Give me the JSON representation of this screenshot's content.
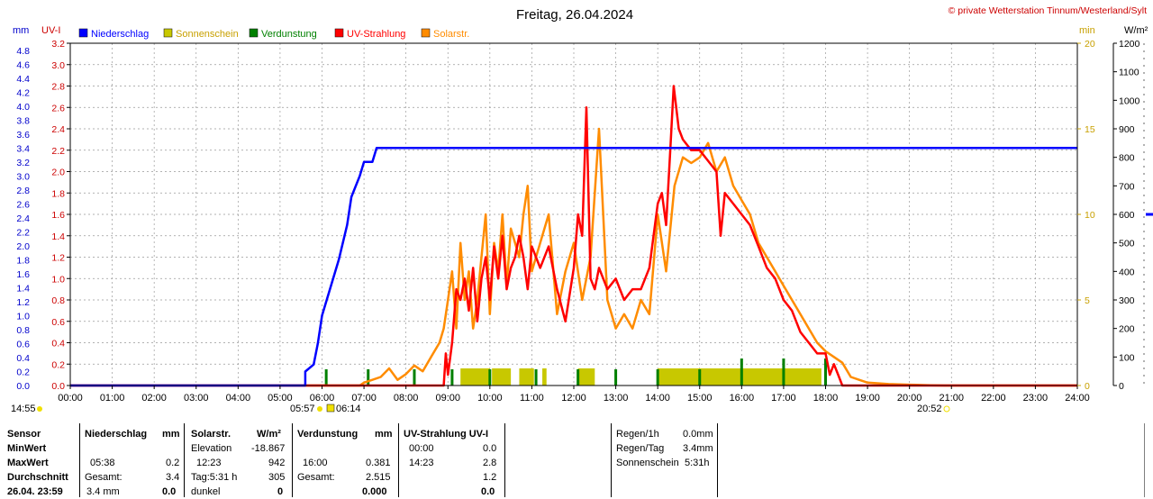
{
  "header": {
    "title": "Freitag, 26.04.2024",
    "copyright": "© private Wetterstation Tinnum/Westerland/Sylt",
    "unit_left1": "mm",
    "unit_left2": "UV-I",
    "unit_right1": "min",
    "unit_right2": "W/m²"
  },
  "legend": [
    {
      "label": "Niederschlag",
      "color": "#0000ff"
    },
    {
      "label": "Sonnenschein",
      "color": "#c8c800"
    },
    {
      "label": "Verdunstung",
      "color": "#008000"
    },
    {
      "label": "UV-Strahlung",
      "color": "#ff0000"
    },
    {
      "label": "Solarstr.",
      "color": "#ff8c00"
    }
  ],
  "sun_times": {
    "prev_sunset": "14:55",
    "sunrise": "05:57",
    "civil": "06:14",
    "sunset": "20:52"
  },
  "chart_data": {
    "type": "line",
    "x_ticks": [
      "00:00",
      "01:00",
      "02:00",
      "03:00",
      "04:00",
      "05:00",
      "06:00",
      "07:00",
      "08:00",
      "09:00",
      "10:00",
      "11:00",
      "12:00",
      "13:00",
      "14:00",
      "15:00",
      "16:00",
      "17:00",
      "18:00",
      "19:00",
      "20:00",
      "21:00",
      "22:00",
      "23:00",
      "24:00"
    ],
    "axes": {
      "mm": {
        "min": 0,
        "max": 4.9,
        "ticks": [
          "0.0",
          "0.2",
          "0.4",
          "0.6",
          "0.8",
          "1.0",
          "1.2",
          "1.4",
          "1.6",
          "1.8",
          "2.0",
          "2.2",
          "2.4",
          "2.6",
          "2.8",
          "3.0",
          "3.2",
          "3.4",
          "3.6",
          "3.8",
          "4.0",
          "4.2",
          "4.4",
          "4.6",
          "4.8"
        ]
      },
      "uv": {
        "min": 0,
        "max": 3.2,
        "ticks": [
          "0.0",
          "0.2",
          "0.4",
          "0.6",
          "0.8",
          "1.0",
          "1.2",
          "1.4",
          "1.6",
          "1.8",
          "2.0",
          "2.2",
          "2.4",
          "2.6",
          "2.8",
          "3.0",
          "3.2"
        ]
      },
      "sun_min": {
        "min": 0,
        "max": 20,
        "ticks": [
          "0",
          "5",
          "10",
          "15",
          "20"
        ]
      },
      "solar": {
        "min": 0,
        "max": 1200,
        "ticks": [
          "0",
          "100",
          "200",
          "300",
          "400",
          "500",
          "600",
          "700",
          "800",
          "900",
          "1000",
          "1100",
          "1200"
        ]
      }
    },
    "series": [
      {
        "name": "Niederschlag",
        "axis": "mm",
        "color": "#0000ff",
        "x": [
          0,
          5.6,
          5.6,
          5.8,
          5.9,
          6.0,
          6.2,
          6.4,
          6.6,
          6.7,
          6.9,
          7.0,
          7.2,
          7.3,
          24
        ],
        "y": [
          0,
          0,
          0.2,
          0.3,
          0.6,
          1.0,
          1.4,
          1.8,
          2.3,
          2.7,
          3.0,
          3.2,
          3.2,
          3.4,
          3.4
        ]
      },
      {
        "name": "UV-Strahlung",
        "axis": "uv",
        "color": "#ff0000",
        "x": [
          0,
          8.9,
          8.95,
          9.0,
          9.1,
          9.2,
          9.3,
          9.4,
          9.5,
          9.6,
          9.7,
          9.8,
          9.9,
          10.0,
          10.1,
          10.2,
          10.3,
          10.4,
          10.5,
          10.6,
          10.7,
          10.8,
          10.9,
          11.0,
          11.2,
          11.4,
          11.6,
          11.8,
          12.0,
          12.1,
          12.2,
          12.3,
          12.4,
          12.5,
          12.6,
          12.8,
          13.0,
          13.2,
          13.4,
          13.6,
          13.8,
          14.0,
          14.1,
          14.2,
          14.3,
          14.38,
          14.5,
          14.6,
          14.8,
          15.0,
          15.2,
          15.4,
          15.5,
          15.6,
          15.8,
          16.0,
          16.2,
          16.4,
          16.6,
          16.8,
          17.0,
          17.2,
          17.4,
          17.6,
          17.8,
          18.0,
          18.1,
          18.2,
          18.3,
          18.4,
          24
        ],
        "y": [
          0,
          0,
          0.3,
          0.1,
          0.4,
          0.9,
          0.8,
          1.0,
          0.7,
          1.1,
          0.6,
          1.0,
          1.2,
          0.8,
          1.3,
          1.0,
          1.4,
          0.9,
          1.1,
          1.2,
          1.4,
          1.2,
          0.9,
          1.3,
          1.1,
          1.3,
          0.9,
          0.6,
          1.1,
          1.6,
          1.4,
          2.6,
          1.0,
          0.9,
          1.1,
          0.9,
          1.0,
          0.8,
          0.9,
          0.9,
          1.1,
          1.7,
          1.8,
          1.5,
          2.2,
          2.8,
          2.4,
          2.3,
          2.2,
          2.2,
          2.1,
          2.0,
          1.4,
          1.8,
          1.7,
          1.6,
          1.5,
          1.3,
          1.1,
          1.0,
          0.8,
          0.7,
          0.5,
          0.4,
          0.3,
          0.3,
          0.1,
          0.2,
          0.1,
          0,
          0
        ]
      },
      {
        "name": "Solarstr.",
        "axis": "solar",
        "color": "#ff8c00",
        "x": [
          0,
          6.9,
          7.0,
          7.2,
          7.4,
          7.6,
          7.8,
          8.0,
          8.2,
          8.4,
          8.6,
          8.8,
          8.9,
          9.0,
          9.1,
          9.2,
          9.3,
          9.4,
          9.5,
          9.6,
          9.7,
          9.8,
          9.9,
          10.0,
          10.1,
          10.2,
          10.3,
          10.4,
          10.5,
          10.6,
          10.7,
          10.8,
          10.9,
          11.0,
          11.2,
          11.4,
          11.6,
          11.8,
          12.0,
          12.2,
          12.4,
          12.6,
          12.8,
          13.0,
          13.2,
          13.4,
          13.6,
          13.8,
          14.0,
          14.2,
          14.4,
          14.6,
          14.8,
          15.0,
          15.2,
          15.4,
          15.6,
          15.8,
          16.0,
          16.2,
          16.4,
          16.6,
          16.8,
          17.0,
          17.2,
          17.4,
          17.6,
          17.8,
          18.0,
          18.2,
          18.4,
          18.6,
          18.8,
          19.0,
          19.5,
          20.0,
          20.5,
          20.85,
          24
        ],
        "y": [
          0,
          0,
          10,
          20,
          30,
          60,
          20,
          40,
          70,
          50,
          100,
          150,
          200,
          300,
          400,
          200,
          500,
          300,
          400,
          200,
          300,
          450,
          600,
          250,
          500,
          400,
          600,
          350,
          550,
          500,
          450,
          600,
          700,
          400,
          500,
          600,
          250,
          400,
          500,
          300,
          450,
          900,
          300,
          200,
          250,
          200,
          300,
          250,
          600,
          400,
          700,
          800,
          780,
          800,
          850,
          750,
          800,
          700,
          650,
          600,
          500,
          450,
          400,
          350,
          300,
          250,
          200,
          150,
          120,
          100,
          80,
          30,
          20,
          10,
          5,
          3,
          1,
          0,
          0
        ]
      },
      {
        "name": "Sonnenschein",
        "axis": "sun_min",
        "color": "#c8c800",
        "bars": [
          [
            9.3,
            10.0
          ],
          [
            10.05,
            10.5
          ],
          [
            10.7,
            11.05
          ],
          [
            11.25,
            11.35
          ],
          [
            12.1,
            12.5
          ],
          [
            14.0,
            17.9
          ]
        ],
        "bar_value": 1
      }
    ],
    "evaporation_spikes": [
      6.1,
      7.1,
      8.2,
      9.1,
      10.0,
      11.1,
      12.1,
      13.0,
      14.0,
      15.0,
      16.0,
      17.0,
      18.0
    ]
  },
  "stats_table": {
    "col1": {
      "sensor": "Sensor",
      "min": "MinWert",
      "max": "MaxWert",
      "avg": "Durchschnitt",
      "last": "26.04. 23:59"
    },
    "col2": {
      "h1": "Niederschlag",
      "h2": "mm",
      "max_time": "05:38",
      "max_val": "0.2",
      "avg_lbl": "Gesamt:",
      "avg_val": "3.4",
      "last_lbl": "3.4 mm",
      "last_val": "0.0"
    },
    "col3": {
      "h1": "Solarstr.",
      "h2": "W/m²",
      "min_lbl": "Elevation",
      "min_val": "-18.867",
      "max_time": "12:23",
      "max_val": "942",
      "avg_lbl": "Tag:5:31 h",
      "avg_val": "305",
      "last_lbl": "dunkel",
      "last_val": "0"
    },
    "col4": {
      "h1": "Verdunstung",
      "h2": "mm",
      "max_time": "16:00",
      "max_val": "0.381",
      "avg_lbl": "Gesamt:",
      "avg_val": "2.515",
      "last_val": "0.000"
    },
    "col5": {
      "h1": "UV-Strahlung UV-I",
      "min_time": "00:00",
      "min_val": "0.0",
      "max_time": "14:23",
      "max_val": "2.8",
      "avg_val": "1.2",
      "last_val": "0.0"
    },
    "col6": {
      "r1_lbl": "Regen/1h",
      "r1_val": "0.0mm",
      "r2_lbl": "Regen/Tag",
      "r2_val": "3.4mm",
      "r3_lbl": "Sonnenschein",
      "r3_val": "5:31h"
    }
  }
}
